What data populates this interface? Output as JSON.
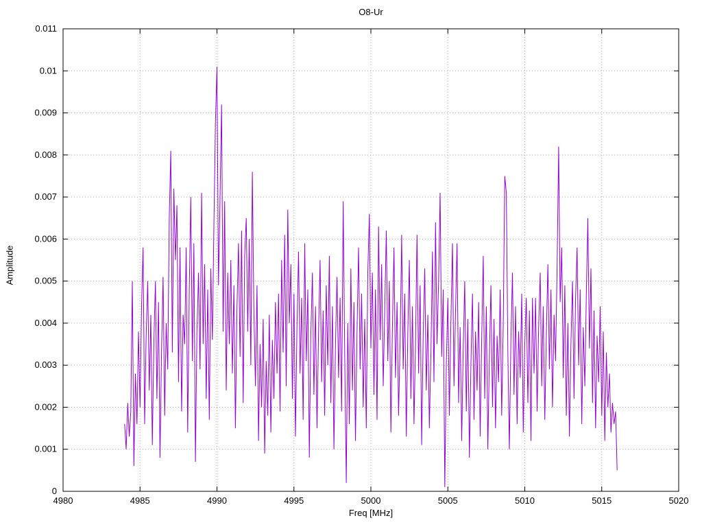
{
  "chart": {
    "title": "O8-Ur",
    "xlabel": "Freq [MHz]",
    "ylabel": "Amplitude"
  },
  "chart_data": {
    "type": "line",
    "title": "O8-Ur",
    "xlabel": "Freq [MHz]",
    "ylabel": "Amplitude",
    "xlim": [
      4980,
      5020
    ],
    "ylim": [
      0,
      0.011
    ],
    "xticks": [
      4980,
      4985,
      4990,
      4995,
      5000,
      5005,
      5010,
      5015,
      5020
    ],
    "xtick_labels": [
      "4980",
      "4985",
      "4990",
      "4995",
      "5000",
      "5005",
      "5010",
      "5015",
      "5020"
    ],
    "yticks": [
      0,
      0.001,
      0.002,
      0.003,
      0.004,
      0.005,
      0.006,
      0.007,
      0.008,
      0.009,
      0.01,
      0.011
    ],
    "ytick_labels": [
      "0",
      "0.001",
      "0.002",
      "0.003",
      "0.004",
      "0.005",
      "0.006",
      "0.007",
      "0.008",
      "0.009",
      "0.01",
      "0.011"
    ],
    "grid": true,
    "legend": "none",
    "line_color": "#9400d3",
    "grid_color": "#a8a8a8",
    "axis_color": "#000000",
    "series": [
      {
        "name": "O8-Ur",
        "x_start": 4984.0,
        "x_step": 0.1,
        "values": [
          0.0016,
          0.001,
          0.0021,
          0.0013,
          0.0019,
          0.005,
          0.0006,
          0.0028,
          0.0016,
          0.0038,
          0.002,
          0.0044,
          0.0058,
          0.0016,
          0.0037,
          0.005,
          0.0024,
          0.0042,
          0.0011,
          0.0036,
          0.005,
          0.0022,
          0.0045,
          0.0008,
          0.0034,
          0.0051,
          0.0018,
          0.004,
          0.0029,
          0.0065,
          0.0081,
          0.0033,
          0.0072,
          0.0055,
          0.0068,
          0.0026,
          0.0058,
          0.0019,
          0.0042,
          0.0035,
          0.0058,
          0.0014,
          0.0048,
          0.007,
          0.0031,
          0.0059,
          0.0007,
          0.0038,
          0.0052,
          0.0029,
          0.0071,
          0.0035,
          0.0054,
          0.0022,
          0.0048,
          0.0017,
          0.0053,
          0.0036,
          0.0063,
          0.0088,
          0.0101,
          0.0049,
          0.007,
          0.0092,
          0.0038,
          0.0069,
          0.0024,
          0.0052,
          0.0035,
          0.0055,
          0.0028,
          0.0049,
          0.0015,
          0.0044,
          0.0059,
          0.0032,
          0.0062,
          0.0021,
          0.0056,
          0.0065,
          0.0038,
          0.006,
          0.003,
          0.0076,
          0.0042,
          0.0025,
          0.0049,
          0.0012,
          0.0035,
          0.002,
          0.0041,
          0.0009,
          0.0031,
          0.0018,
          0.0042,
          0.0014,
          0.0036,
          0.0022,
          0.0045,
          0.0028,
          0.0047,
          0.0019,
          0.0055,
          0.0033,
          0.0061,
          0.0025,
          0.0067,
          0.004,
          0.0054,
          0.0022,
          0.0047,
          0.0013,
          0.0039,
          0.0057,
          0.0028,
          0.0046,
          0.0017,
          0.0059,
          0.0031,
          0.0048,
          0.0008,
          0.0037,
          0.0052,
          0.0023,
          0.0044,
          0.0015,
          0.0038,
          0.0055,
          0.0026,
          0.0043,
          0.0018,
          0.0049,
          0.003,
          0.0056,
          0.0021,
          0.0044,
          0.001,
          0.0035,
          0.0051,
          0.0027,
          0.0046,
          0.0019,
          0.0069,
          0.0033,
          0.0002,
          0.004,
          0.0016,
          0.0053,
          0.0024,
          0.0045,
          0.0012,
          0.0038,
          0.0058,
          0.0029,
          0.0047,
          0.002,
          0.0041,
          0.0015,
          0.0052,
          0.0066,
          0.0034,
          0.0052,
          0.0023,
          0.0048,
          0.0017,
          0.0063,
          0.0036,
          0.0054,
          0.0025,
          0.0043,
          0.0062,
          0.0031,
          0.005,
          0.0014,
          0.0039,
          0.0058,
          0.0027,
          0.0045,
          0.0018,
          0.0036,
          0.0061,
          0.0029,
          0.0047,
          0.0013,
          0.0038,
          0.0055,
          0.0022,
          0.0044,
          0.0016,
          0.0035,
          0.0061,
          0.0028,
          0.0049,
          0.0011,
          0.0037,
          0.0053,
          0.0024,
          0.0042,
          0.0015,
          0.0033,
          0.0057,
          0.0026,
          0.0064,
          0.0035,
          0.005,
          0.0071,
          0.0032,
          0.0048,
          0.0001,
          0.003,
          0.0046,
          0.0018,
          0.004,
          0.0059,
          0.0025,
          0.0043,
          0.0059,
          0.0021,
          0.0039,
          0.0012,
          0.0034,
          0.005,
          0.0019,
          0.0041,
          0.0008,
          0.003,
          0.0047,
          0.0017,
          0.0038,
          0.0024,
          0.0045,
          0.0013,
          0.0036,
          0.0056,
          0.0022,
          0.0044,
          0.001,
          0.0032,
          0.0049,
          0.002,
          0.0041,
          0.0015,
          0.0037,
          0.0026,
          0.0048,
          0.0018,
          0.004,
          0.0075,
          0.0071,
          0.0033,
          0.001,
          0.0036,
          0.0052,
          0.0023,
          0.0044,
          0.0016,
          0.0038,
          0.0027,
          0.0047,
          0.0014,
          0.0035,
          0.0046,
          0.0021,
          0.0043,
          0.0012,
          0.0046,
          0.0028,
          0.0046,
          0.0019,
          0.0039,
          0.0052,
          0.0025,
          0.0044,
          0.0017,
          0.0037,
          0.0054,
          0.0029,
          0.0048,
          0.002,
          0.0042,
          0.0031,
          0.0053,
          0.0082,
          0.0045,
          0.0058,
          0.0027,
          0.0049,
          0.0018,
          0.004,
          0.0013,
          0.0035,
          0.005,
          0.0022,
          0.0046,
          0.0058,
          0.003,
          0.0048,
          0.0016,
          0.0039,
          0.0025,
          0.0047,
          0.0065,
          0.0034,
          0.0053,
          0.0021,
          0.0043,
          0.0015,
          0.0037,
          0.0026,
          0.0044,
          0.0018,
          0.0038,
          0.0012,
          0.0033,
          0.002,
          0.0028,
          0.0014,
          0.0021,
          0.0016,
          0.0019,
          0.0005
        ]
      }
    ]
  }
}
